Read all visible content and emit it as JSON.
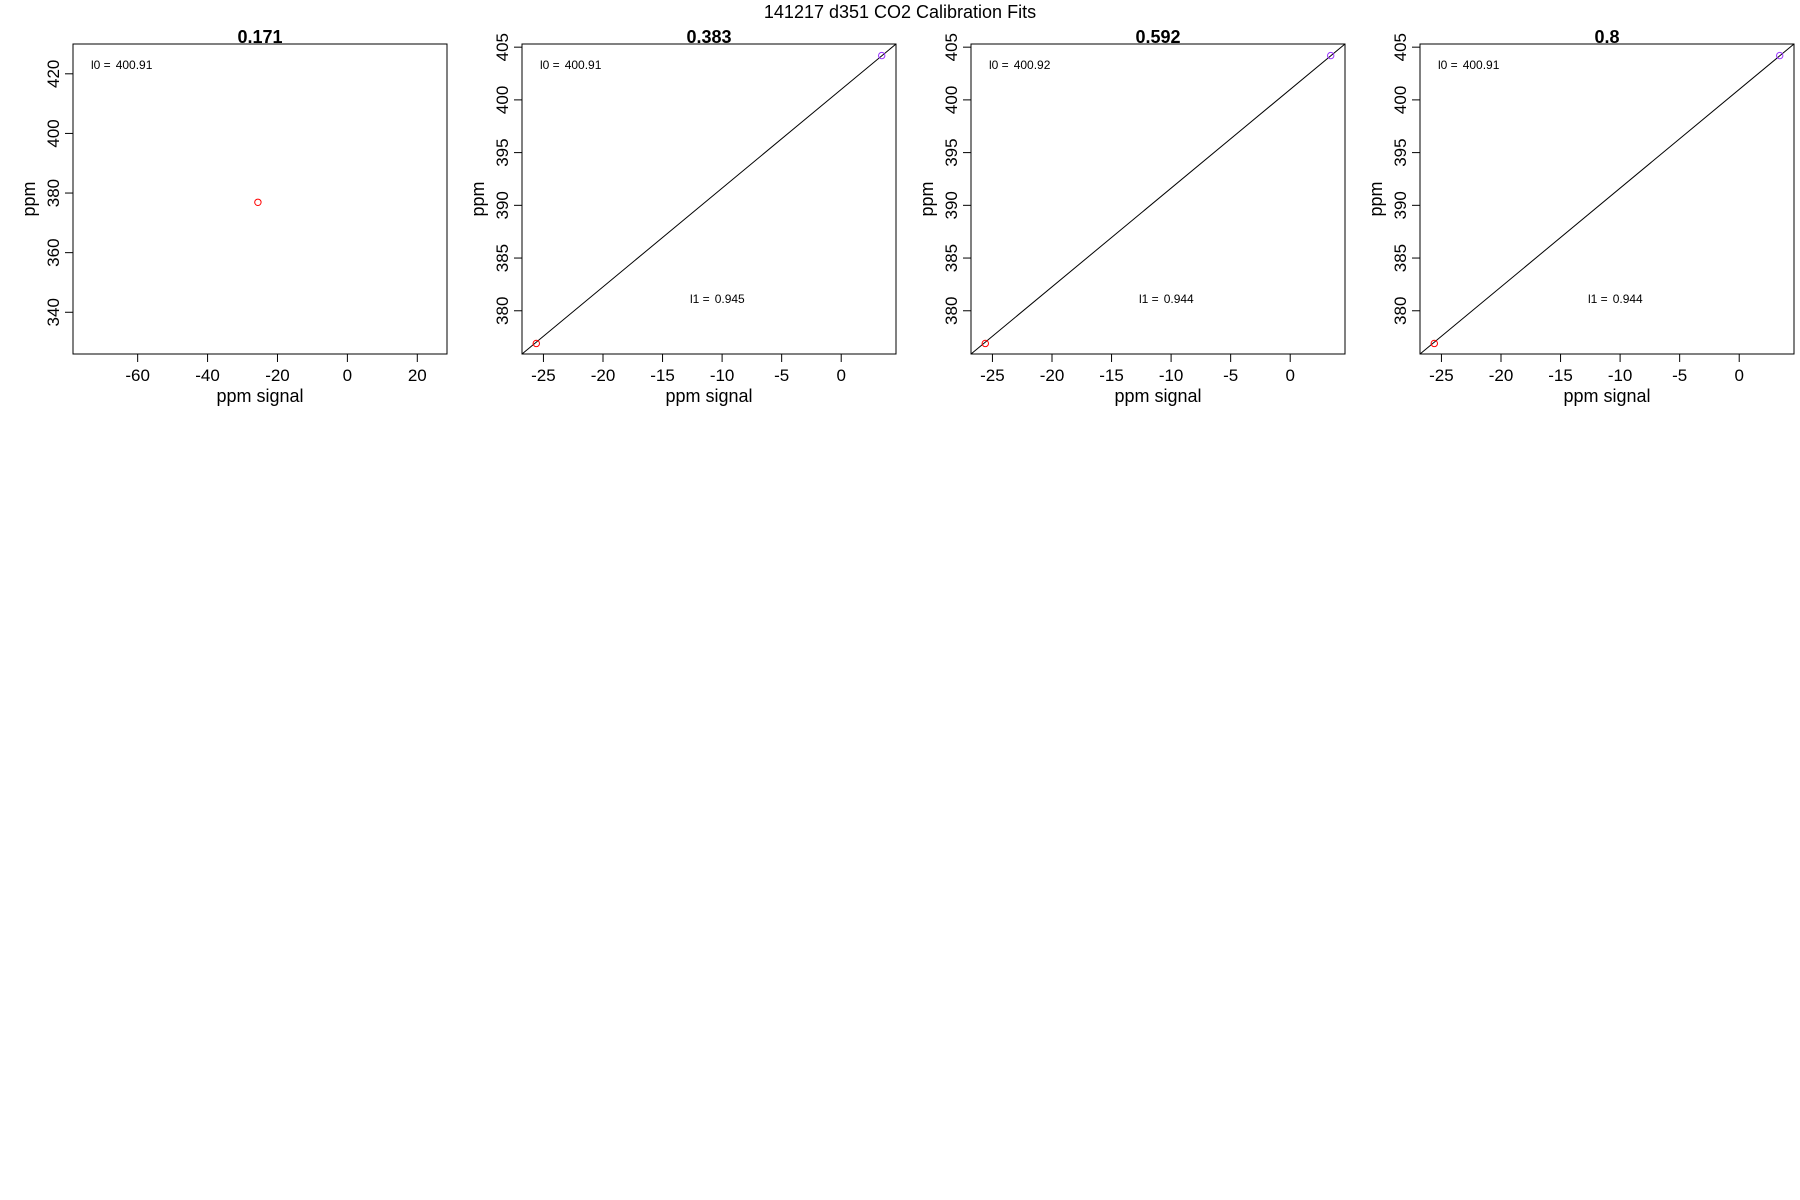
{
  "suptitle": "141217   d351   CO2 Calibration Fits",
  "colors": {
    "low_point": "#ff0000",
    "high_point": "#9933ff",
    "line": "#000000",
    "frame": "#000000"
  },
  "chart_data": [
    {
      "type": "scatter",
      "title": "0.171",
      "xlabel": "ppm signal",
      "ylabel": "ppm",
      "xlim": [
        -78.5,
        28.5
      ],
      "ylim": [
        326,
        430
      ],
      "x_ticks": [
        -60,
        -40,
        -20,
        0,
        20
      ],
      "x_tick_labels": [
        "-60",
        "-40",
        "-20",
        "0",
        "20"
      ],
      "y_ticks": [
        340,
        360,
        380,
        400,
        420
      ],
      "y_tick_labels": [
        "340",
        "360",
        "380",
        "400",
        "420"
      ],
      "points": [
        {
          "x": -25.6,
          "y": 376.9,
          "color": "#ff0000"
        }
      ],
      "fit_line": null,
      "annotations": [
        {
          "label": "l0 =",
          "value": "400.91",
          "position": "top-left"
        }
      ],
      "grid": false
    },
    {
      "type": "scatter",
      "title": "0.383",
      "xlabel": "ppm signal",
      "ylabel": "ppm",
      "xlim": [
        -26.8,
        4.6
      ],
      "ylim": [
        375.9,
        405.3
      ],
      "x_ticks": [
        -25,
        -20,
        -15,
        -10,
        -5,
        0
      ],
      "x_tick_labels": [
        "-25",
        "-20",
        "-15",
        "-10",
        "-5",
        "0"
      ],
      "y_ticks": [
        380,
        385,
        390,
        395,
        400,
        405
      ],
      "y_tick_labels": [
        "380",
        "385",
        "390",
        "395",
        "400",
        "405"
      ],
      "points": [
        {
          "x": -25.6,
          "y": 376.9,
          "color": "#ff0000"
        },
        {
          "x": 3.4,
          "y": 404.2,
          "color": "#9933ff"
        }
      ],
      "fit_line": {
        "x": [
          -26.8,
          4.6
        ],
        "y": [
          375.9,
          405.3
        ]
      },
      "annotations": [
        {
          "label": "l0 =",
          "value": "400.91",
          "position": "top-left"
        },
        {
          "label": "l1 =",
          "value": "0.945",
          "position": "bottom-right"
        }
      ],
      "grid": false
    },
    {
      "type": "scatter",
      "title": "0.592",
      "xlabel": "ppm signal",
      "ylabel": "ppm",
      "xlim": [
        -26.8,
        4.6
      ],
      "ylim": [
        375.9,
        405.3
      ],
      "x_ticks": [
        -25,
        -20,
        -15,
        -10,
        -5,
        0
      ],
      "x_tick_labels": [
        "-25",
        "-20",
        "-15",
        "-10",
        "-5",
        "0"
      ],
      "y_ticks": [
        380,
        385,
        390,
        395,
        400,
        405
      ],
      "y_tick_labels": [
        "380",
        "385",
        "390",
        "395",
        "400",
        "405"
      ],
      "points": [
        {
          "x": -25.6,
          "y": 376.9,
          "color": "#ff0000"
        },
        {
          "x": 3.4,
          "y": 404.2,
          "color": "#9933ff"
        }
      ],
      "fit_line": {
        "x": [
          -26.8,
          4.6
        ],
        "y": [
          375.9,
          405.3
        ]
      },
      "annotations": [
        {
          "label": "l0 =",
          "value": "400.92",
          "position": "top-left"
        },
        {
          "label": "l1 =",
          "value": "0.944",
          "position": "bottom-right"
        }
      ],
      "grid": false
    },
    {
      "type": "scatter",
      "title": "0.8",
      "xlabel": "ppm signal",
      "ylabel": "ppm",
      "xlim": [
        -26.8,
        4.6
      ],
      "ylim": [
        375.9,
        405.3
      ],
      "x_ticks": [
        -25,
        -20,
        -15,
        -10,
        -5,
        0
      ],
      "x_tick_labels": [
        "-25",
        "-20",
        "-15",
        "-10",
        "-5",
        "0"
      ],
      "y_ticks": [
        380,
        385,
        390,
        395,
        400,
        405
      ],
      "y_tick_labels": [
        "380",
        "385",
        "390",
        "395",
        "400",
        "405"
      ],
      "points": [
        {
          "x": -25.6,
          "y": 376.9,
          "color": "#ff0000"
        },
        {
          "x": 3.4,
          "y": 404.2,
          "color": "#9933ff"
        }
      ],
      "fit_line": {
        "x": [
          -26.8,
          4.6
        ],
        "y": [
          375.9,
          405.3
        ]
      },
      "annotations": [
        {
          "label": "l0 =",
          "value": "400.91",
          "position": "top-left"
        },
        {
          "label": "l1 =",
          "value": "0.944",
          "position": "bottom-right"
        }
      ],
      "grid": false
    }
  ]
}
